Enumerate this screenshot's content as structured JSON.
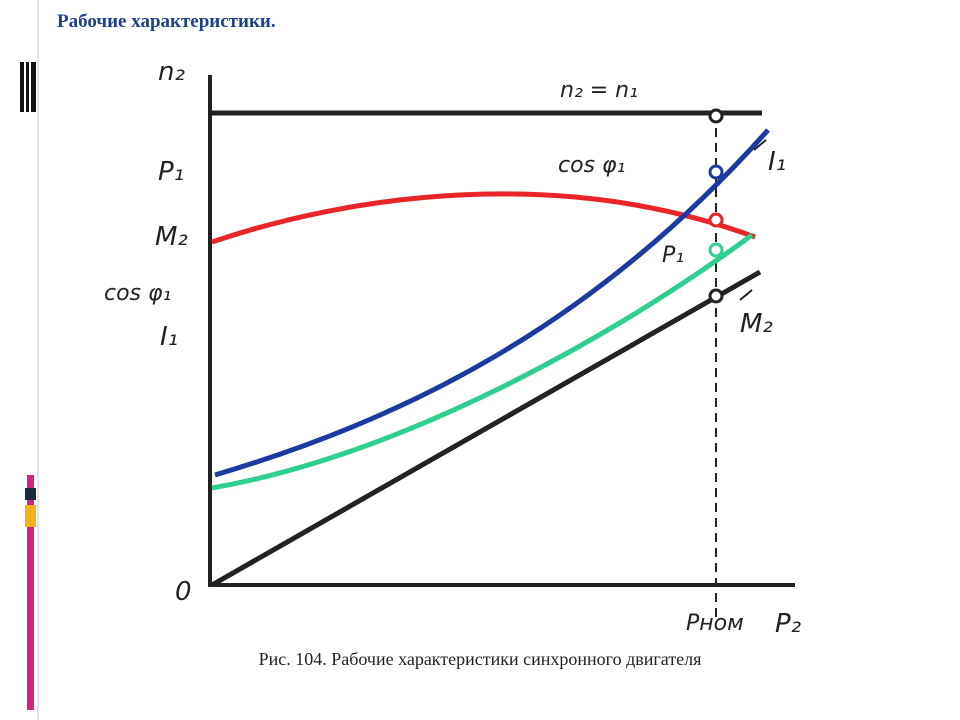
{
  "header": {
    "title": "Рабочие характеристики."
  },
  "diagram": {
    "y_axis_labels": [
      "n₂",
      "P₁",
      "M₂",
      "cos φ₁",
      "I₁"
    ],
    "origin": "0",
    "x_axis_labels": [
      "Pном",
      "P₂"
    ],
    "curve_labels": [
      "n₂ = n₁",
      "cos φ₁",
      "I₁",
      "P₁",
      "M₂"
    ]
  },
  "caption": "Рис. 104. Рабочие характеристики синхронного двигателя"
}
